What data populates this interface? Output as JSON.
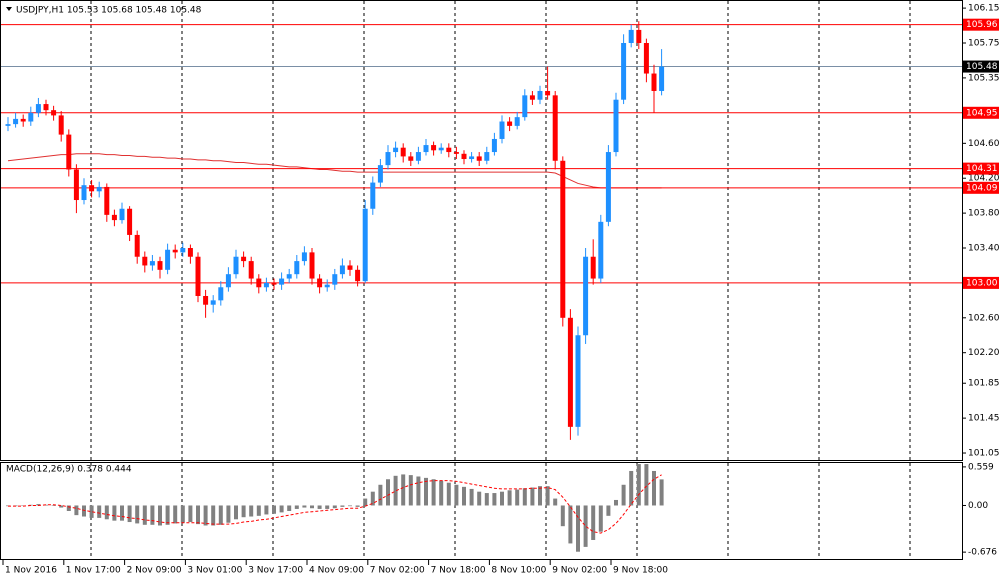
{
  "chart_data": [
    {
      "type": "candlestick",
      "title": "USDJPY,H1  105.53 105.68 105.48 105.48",
      "up_color": "#1e90ff",
      "down_color": "#ff0000",
      "ylim": [
        100.97,
        106.22
      ],
      "yticks": [
        106.15,
        105.75,
        105.35,
        {
          "value": 104.6,
          "label": "104.60"
        },
        {
          "value": 104.2,
          "label": "104.20"
        },
        {
          "value": 103.8,
          "label": "103.80"
        },
        {
          "value": 103.4,
          "label": "103.40"
        },
        {
          "value": 102.6,
          "label": "102.60"
        },
        {
          "value": 102.2,
          "label": "102.20"
        },
        101.85,
        101.45,
        101.05
      ],
      "levels": [
        105.96,
        104.95,
        104.31,
        104.09,
        {
          "value": 103,
          "label": "103.00"
        }
      ],
      "level_color": "#ff0000",
      "last_price": 105.48,
      "ma_color": "#e03030",
      "categories": [
        "1 Nov 2016",
        null,
        null,
        null,
        null,
        null,
        null,
        null,
        "1 Nov 17:00",
        null,
        null,
        null,
        null,
        null,
        null,
        null,
        "2 Nov 09:00",
        null,
        null,
        null,
        null,
        null,
        null,
        null,
        "3 Nov 01:00",
        null,
        null,
        null,
        null,
        null,
        null,
        null,
        "3 Nov 17:00",
        null,
        null,
        null,
        null,
        null,
        null,
        null,
        "4 Nov 09:00",
        null,
        null,
        null,
        null,
        null,
        null,
        null,
        "7 Nov 02:00",
        null,
        null,
        null,
        null,
        null,
        null,
        null,
        "7 Nov 18:00",
        null,
        null,
        null,
        null,
        null,
        null,
        null,
        "8 Nov 10:00",
        null,
        null,
        null,
        null,
        null,
        null,
        null,
        "9 Nov 02:00",
        null,
        null,
        null,
        null,
        null,
        null,
        null,
        "9 Nov 18:00",
        null,
        null,
        null,
        null,
        null,
        null
      ],
      "candles": [
        [
          104.8,
          104.9,
          104.74,
          104.82
        ],
        [
          104.82,
          104.95,
          104.78,
          104.88
        ],
        [
          104.88,
          104.93,
          104.79,
          104.85
        ],
        [
          104.85,
          105.02,
          104.8,
          104.95
        ],
        [
          104.95,
          105.12,
          104.9,
          105.05
        ],
        [
          105.05,
          105.1,
          104.92,
          104.98
        ],
        [
          104.98,
          105.03,
          104.86,
          104.92
        ],
        [
          104.92,
          104.97,
          104.62,
          104.7
        ],
        [
          104.7,
          104.76,
          104.22,
          104.3
        ],
        [
          104.3,
          104.36,
          103.8,
          103.95
        ],
        [
          103.95,
          104.2,
          103.9,
          104.12
        ],
        [
          104.12,
          104.18,
          103.98,
          104.05
        ],
        [
          104.05,
          104.16,
          103.98,
          104.1
        ],
        [
          104.1,
          104.14,
          103.7,
          103.78
        ],
        [
          103.78,
          103.84,
          103.65,
          103.72
        ],
        [
          103.72,
          103.92,
          103.68,
          103.85
        ],
        [
          103.85,
          103.88,
          103.48,
          103.55
        ],
        [
          103.55,
          103.6,
          103.22,
          103.3
        ],
        [
          103.3,
          103.36,
          103.12,
          103.2
        ],
        [
          103.2,
          103.32,
          103.14,
          103.25
        ],
        [
          103.25,
          103.3,
          103.05,
          103.15
        ],
        [
          103.15,
          103.45,
          103.1,
          103.38
        ],
        [
          103.38,
          103.44,
          103.28,
          103.35
        ],
        [
          103.35,
          103.46,
          103.3,
          103.4
        ],
        [
          103.4,
          103.44,
          103.22,
          103.3
        ],
        [
          103.3,
          103.35,
          102.78,
          102.85
        ],
        [
          102.85,
          102.92,
          102.6,
          102.75
        ],
        [
          102.75,
          102.86,
          102.66,
          102.8
        ],
        [
          102.8,
          103.02,
          102.74,
          102.95
        ],
        [
          102.95,
          103.18,
          102.9,
          103.1
        ],
        [
          103.1,
          103.38,
          103.05,
          103.3
        ],
        [
          103.3,
          103.36,
          103.18,
          103.25
        ],
        [
          103.25,
          103.3,
          102.98,
          103.05
        ],
        [
          103.05,
          103.1,
          102.88,
          102.95
        ],
        [
          102.95,
          103.06,
          102.9,
          103.0
        ],
        [
          103.0,
          103.05,
          102.92,
          102.98
        ],
        [
          102.98,
          103.12,
          102.92,
          103.05
        ],
        [
          103.05,
          103.16,
          103.0,
          103.1
        ],
        [
          103.1,
          103.32,
          103.05,
          103.25
        ],
        [
          103.25,
          103.42,
          103.2,
          103.35
        ],
        [
          103.35,
          103.4,
          102.98,
          103.05
        ],
        [
          103.05,
          103.1,
          102.88,
          102.95
        ],
        [
          102.95,
          103.04,
          102.9,
          102.98
        ],
        [
          102.98,
          103.16,
          102.92,
          103.1
        ],
        [
          103.1,
          103.28,
          103.05,
          103.2
        ],
        [
          103.2,
          103.26,
          103.08,
          103.15
        ],
        [
          103.15,
          103.2,
          102.96,
          103.02
        ],
        [
          103.02,
          103.95,
          103.0,
          103.85
        ],
        [
          103.85,
          104.22,
          103.78,
          104.15
        ],
        [
          104.15,
          104.42,
          104.1,
          104.35
        ],
        [
          104.35,
          104.58,
          104.3,
          104.5
        ],
        [
          104.5,
          104.62,
          104.44,
          104.55
        ],
        [
          104.55,
          104.6,
          104.38,
          104.45
        ],
        [
          104.45,
          104.5,
          104.34,
          104.4
        ],
        [
          104.4,
          104.56,
          104.36,
          104.5
        ],
        [
          104.5,
          104.65,
          104.46,
          104.58
        ],
        [
          104.58,
          104.62,
          104.46,
          104.52
        ],
        [
          104.52,
          104.6,
          104.48,
          104.55
        ],
        [
          104.55,
          104.6,
          104.44,
          104.5
        ],
        [
          104.5,
          104.56,
          104.42,
          104.48
        ],
        [
          104.48,
          104.52,
          104.36,
          104.42
        ],
        [
          104.42,
          104.5,
          104.38,
          104.45
        ],
        [
          104.45,
          104.5,
          104.34,
          104.4
        ],
        [
          104.4,
          104.56,
          104.36,
          104.5
        ],
        [
          104.5,
          104.72,
          104.46,
          104.65
        ],
        [
          104.65,
          104.92,
          104.6,
          104.85
        ],
        [
          104.85,
          104.9,
          104.74,
          104.8
        ],
        [
          104.8,
          104.96,
          104.76,
          104.9
        ],
        [
          104.9,
          105.22,
          104.86,
          105.15
        ],
        [
          105.15,
          105.2,
          105.04,
          105.1
        ],
        [
          105.1,
          105.26,
          105.05,
          105.2
        ],
        [
          105.2,
          105.48,
          105.1,
          105.15
        ],
        [
          105.15,
          105.2,
          104.3,
          104.4
        ],
        [
          104.4,
          104.45,
          102.5,
          102.6
        ],
        [
          102.6,
          102.7,
          101.2,
          101.35
        ],
        [
          101.35,
          102.5,
          101.25,
          102.4
        ],
        [
          102.4,
          103.4,
          102.3,
          103.3
        ],
        [
          103.3,
          103.5,
          102.98,
          103.05
        ],
        [
          103.05,
          103.78,
          103.0,
          103.7
        ],
        [
          103.7,
          104.58,
          103.65,
          104.5
        ],
        [
          104.5,
          105.18,
          104.45,
          105.1
        ],
        [
          105.1,
          105.85,
          105.05,
          105.75
        ],
        [
          105.75,
          105.96,
          105.7,
          105.9
        ],
        [
          105.9,
          106.0,
          105.68,
          105.75
        ],
        [
          105.75,
          105.8,
          105.3,
          105.4
        ],
        [
          105.4,
          105.5,
          104.95,
          105.2
        ],
        [
          105.2,
          105.68,
          105.15,
          105.48
        ]
      ],
      "ma_values": [
        104.4,
        104.41,
        104.42,
        104.43,
        104.44,
        104.45,
        104.46,
        104.47,
        104.47,
        104.48,
        104.48,
        104.48,
        104.48,
        104.47,
        104.47,
        104.46,
        104.46,
        104.45,
        104.45,
        104.44,
        104.44,
        104.43,
        104.43,
        104.42,
        104.42,
        104.41,
        104.41,
        104.4,
        104.4,
        104.39,
        104.38,
        104.38,
        104.37,
        104.36,
        104.36,
        104.35,
        104.34,
        104.33,
        104.33,
        104.32,
        104.31,
        104.3,
        104.3,
        104.29,
        104.28,
        104.28,
        104.27,
        104.27,
        104.27,
        104.27,
        104.27,
        104.27,
        104.27,
        104.27,
        104.27,
        104.27,
        104.27,
        104.27,
        104.27,
        104.27,
        104.27,
        104.27,
        104.27,
        104.27,
        104.27,
        104.27,
        104.27,
        104.27,
        104.27,
        104.27,
        104.27,
        104.27,
        104.26,
        104.22,
        104.18,
        104.14,
        104.12,
        104.1,
        104.09,
        104.09,
        104.09,
        104.09,
        104.09,
        104.09,
        104.09,
        104.09,
        104.09
      ]
    },
    {
      "type": "macd",
      "title": "MACD(12,26,9) 0.378 0.444",
      "hist_color": "#808080",
      "signal_color": "#ff0000",
      "ylim": [
        -0.79,
        0.63
      ],
      "yticks": [
        0.559,
        {
          "value": 0,
          "label": "0.00"
        },
        -0.676
      ],
      "histogram": [
        -0.01,
        -0.01,
        0.0,
        0.01,
        0.02,
        0.01,
        0.0,
        -0.03,
        -0.08,
        -0.14,
        -0.16,
        -0.18,
        -0.18,
        -0.2,
        -0.22,
        -0.22,
        -0.24,
        -0.26,
        -0.28,
        -0.28,
        -0.29,
        -0.28,
        -0.26,
        -0.25,
        -0.24,
        -0.27,
        -0.29,
        -0.29,
        -0.28,
        -0.25,
        -0.2,
        -0.17,
        -0.16,
        -0.15,
        -0.13,
        -0.12,
        -0.1,
        -0.08,
        -0.05,
        -0.03,
        -0.04,
        -0.05,
        -0.05,
        -0.04,
        -0.02,
        -0.01,
        -0.02,
        0.1,
        0.2,
        0.3,
        0.38,
        0.43,
        0.45,
        0.44,
        0.42,
        0.4,
        0.38,
        0.36,
        0.33,
        0.3,
        0.27,
        0.24,
        0.2,
        0.18,
        0.18,
        0.2,
        0.22,
        0.23,
        0.25,
        0.26,
        0.28,
        0.28,
        0.1,
        -0.3,
        -0.55,
        -0.67,
        -0.6,
        -0.5,
        -0.38,
        -0.15,
        0.08,
        0.3,
        0.5,
        0.6,
        0.6,
        0.5,
        0.378
      ],
      "signal": [
        -0.01,
        -0.01,
        -0.01,
        0.0,
        0.0,
        0.01,
        0.01,
        0.0,
        -0.02,
        -0.04,
        -0.07,
        -0.09,
        -0.11,
        -0.13,
        -0.15,
        -0.16,
        -0.18,
        -0.19,
        -0.21,
        -0.22,
        -0.24,
        -0.25,
        -0.25,
        -0.25,
        -0.25,
        -0.25,
        -0.26,
        -0.27,
        -0.27,
        -0.27,
        -0.26,
        -0.24,
        -0.23,
        -0.21,
        -0.2,
        -0.18,
        -0.16,
        -0.14,
        -0.12,
        -0.1,
        -0.09,
        -0.08,
        -0.07,
        -0.06,
        -0.05,
        -0.04,
        -0.04,
        -0.01,
        0.03,
        0.09,
        0.15,
        0.21,
        0.26,
        0.3,
        0.33,
        0.35,
        0.36,
        0.36,
        0.36,
        0.35,
        0.33,
        0.31,
        0.29,
        0.27,
        0.25,
        0.24,
        0.24,
        0.24,
        0.24,
        0.25,
        0.25,
        0.26,
        0.23,
        0.12,
        -0.02,
        -0.17,
        -0.3,
        -0.38,
        -0.4,
        -0.35,
        -0.26,
        -0.13,
        0.02,
        0.16,
        0.28,
        0.38,
        0.444
      ]
    }
  ]
}
